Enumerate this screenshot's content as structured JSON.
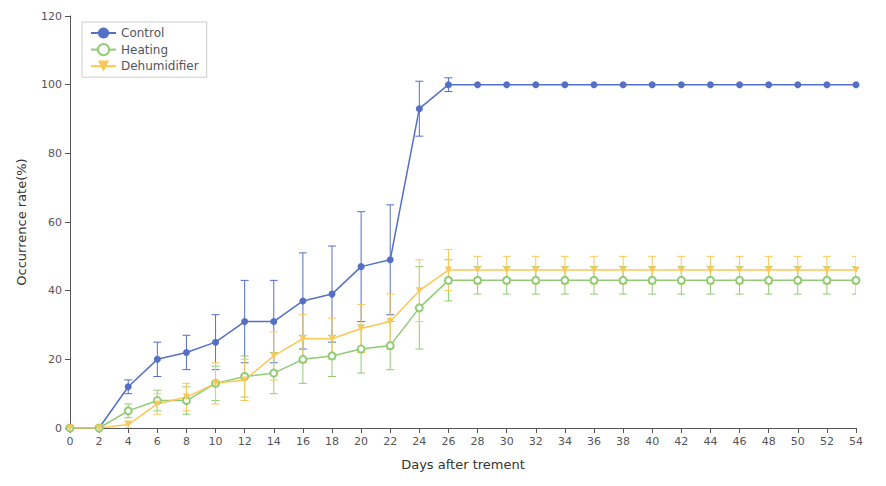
{
  "chart_data": {
    "type": "line",
    "x": [
      0,
      2,
      4,
      6,
      8,
      10,
      12,
      14,
      16,
      18,
      20,
      22,
      24,
      26,
      28,
      30,
      32,
      34,
      36,
      38,
      40,
      42,
      44,
      46,
      48,
      50,
      52,
      54
    ],
    "xlabel": "Days after trement",
    "ylabel": "Occurrence rate(%)",
    "xlim": [
      0,
      54
    ],
    "xticks": [
      0,
      2,
      4,
      6,
      8,
      10,
      12,
      14,
      16,
      18,
      20,
      22,
      24,
      26,
      28,
      30,
      32,
      34,
      36,
      38,
      40,
      42,
      44,
      46,
      48,
      50,
      52,
      54
    ],
    "ylim": [
      0,
      120
    ],
    "yticks": [
      0,
      20,
      40,
      60,
      80,
      100,
      120
    ],
    "grid": false,
    "legend": "upper left",
    "series": [
      {
        "name": "Control",
        "marker": "circle",
        "values": [
          0,
          0,
          12,
          20,
          22,
          25,
          31,
          31,
          37,
          39,
          47,
          49,
          93,
          100,
          100,
          100,
          100,
          100,
          100,
          100,
          100,
          100,
          100,
          100,
          100,
          100,
          100,
          100
        ],
        "errors": [
          0,
          0,
          2,
          5,
          5,
          8,
          12,
          12,
          14,
          14,
          16,
          16,
          8,
          2,
          0,
          0,
          0,
          0,
          0,
          0,
          0,
          0,
          0,
          0,
          0,
          0,
          0,
          0
        ]
      },
      {
        "name": "Heating",
        "marker": "open_circle",
        "values": [
          0,
          0,
          5,
          8,
          8,
          13,
          15,
          16,
          20,
          21,
          23,
          24,
          35,
          43,
          43,
          43,
          43,
          43,
          43,
          43,
          43,
          43,
          43,
          43,
          43,
          43,
          43,
          43
        ],
        "errors": [
          0,
          0,
          2,
          3,
          4,
          5,
          6,
          6,
          7,
          6,
          7,
          7,
          12,
          6,
          4,
          4,
          4,
          4,
          4,
          4,
          4,
          4,
          4,
          4,
          4,
          4,
          4,
          4
        ]
      },
      {
        "name": "Dehumidifier",
        "marker": "triangle_down",
        "values": [
          0,
          0,
          1,
          7,
          9,
          13,
          14,
          21,
          26,
          26,
          29,
          31,
          40,
          46,
          46,
          46,
          46,
          46,
          46,
          46,
          46,
          46,
          46,
          46,
          46,
          46,
          46,
          46
        ],
        "errors": [
          0,
          0,
          1,
          3,
          4,
          6,
          6,
          7,
          7,
          6,
          7,
          8,
          9,
          6,
          4,
          4,
          4,
          4,
          4,
          4,
          4,
          4,
          4,
          4,
          4,
          4,
          4,
          4
        ]
      }
    ]
  }
}
